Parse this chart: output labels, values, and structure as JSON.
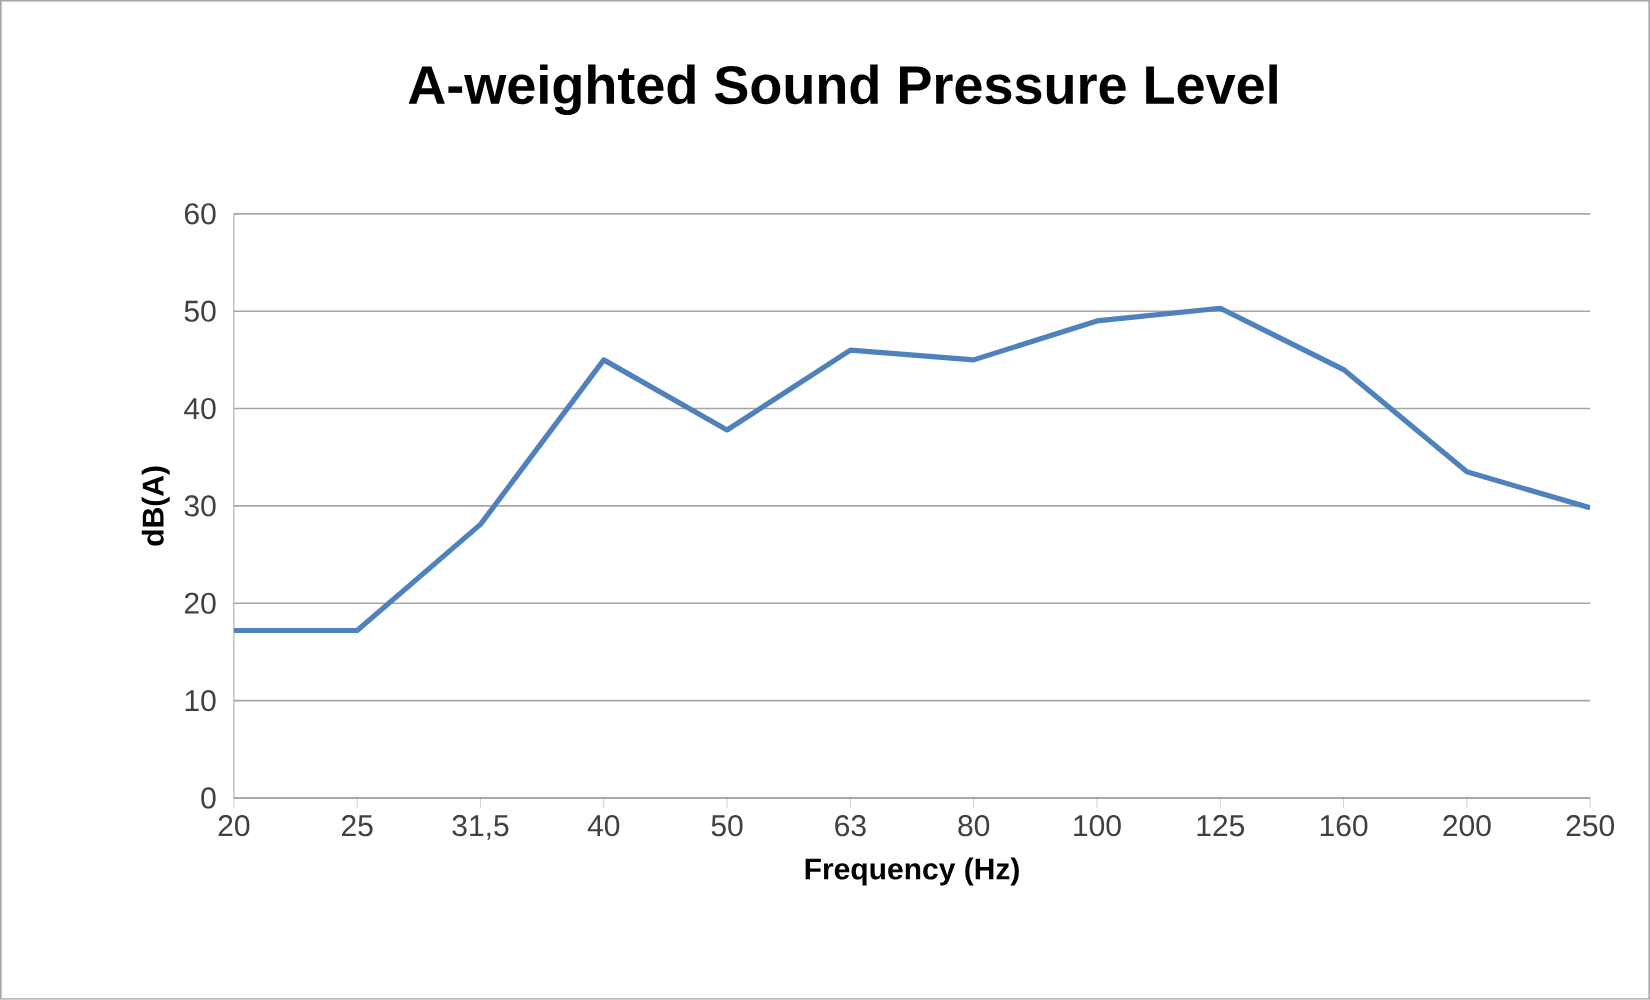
{
  "chart_data": {
    "type": "line",
    "title": "A-weighted Sound Pressure Level",
    "xlabel": "Frequency (Hz)",
    "ylabel": "dB(A)",
    "categories": [
      "20",
      "25",
      "31,5",
      "40",
      "50",
      "63",
      "80",
      "100",
      "125",
      "160",
      "200",
      "250"
    ],
    "series": [
      {
        "color": "#4f81bd",
        "values": [
          17.2,
          17.2,
          28.1,
          45,
          37.8,
          46,
          45,
          49,
          50.3,
          44,
          33.5,
          29.8
        ]
      }
    ],
    "ylim": [
      0,
      60
    ],
    "yticks": [
      0,
      10,
      20,
      30,
      40,
      50,
      60
    ],
    "grid": "y",
    "marker": "none",
    "line_style": "solid"
  }
}
